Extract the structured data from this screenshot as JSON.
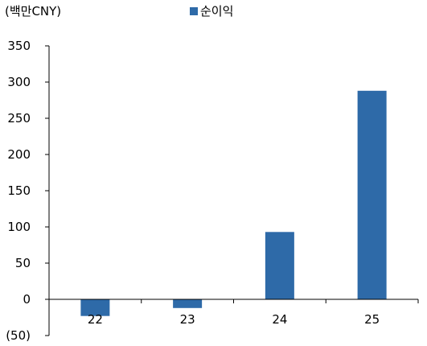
{
  "chart_data": {
    "type": "bar",
    "unit_label": "(백만CNY)",
    "categories": [
      "22",
      "23",
      "24",
      "25"
    ],
    "series": [
      {
        "name": "순이익",
        "values": [
          -23,
          -12,
          93,
          288
        ],
        "color": "#2e6aa8"
      }
    ],
    "yticks": [
      "350",
      "300",
      "250",
      "200",
      "150",
      "100",
      "50",
      "0",
      "(50)"
    ],
    "ytick_values": [
      350,
      300,
      250,
      200,
      150,
      100,
      50,
      0,
      -50
    ],
    "ylim": [
      -50,
      350
    ],
    "grid": false,
    "legend_position": "top"
  }
}
